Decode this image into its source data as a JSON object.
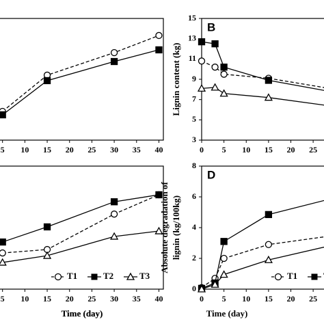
{
  "chart_data": [
    {
      "type": "line",
      "x_label": "Time (day)",
      "x": [
        5,
        15,
        30,
        40
      ],
      "xlim": [
        0,
        41
      ],
      "xticks": [
        5,
        10,
        15,
        20,
        25,
        30,
        35,
        40
      ],
      "ylim": [
        0,
        100
      ],
      "series": [
        {
          "name": "T1",
          "color": "#000000",
          "values": [
            23.6,
            53.4,
            71.9,
            86
          ]
        },
        {
          "name": "T2",
          "color": "#000000",
          "values": [
            20.8,
            48.9,
            64.6,
            74.2
          ]
        }
      ]
    },
    {
      "type": "line",
      "panel_label": "B",
      "y_label": "Lignin content (kg)",
      "x": [
        0,
        3,
        5,
        15,
        30
      ],
      "xlim": [
        0,
        40
      ],
      "xticks": [
        0,
        5,
        10,
        15,
        20,
        25
      ],
      "ylim": [
        3,
        15
      ],
      "yticks": [
        3,
        5,
        7,
        9,
        11,
        13,
        15
      ],
      "series": [
        {
          "name": "T1",
          "color": "#000000",
          "values": [
            10.8,
            10.2,
            9.5,
            9.1,
            8.0
          ]
        },
        {
          "name": "T2",
          "color": "#000000",
          "values": [
            12.7,
            12.5,
            10.2,
            8.9,
            7.7
          ]
        },
        {
          "name": "T3",
          "color": "#000000",
          "values": [
            8.1,
            8.2,
            7.6,
            7.2,
            6.3
          ]
        }
      ]
    },
    {
      "type": "line",
      "x_label": "Time (day)",
      "x": [
        5,
        15,
        30,
        40
      ],
      "xlim": [
        0,
        41
      ],
      "xticks": [
        5,
        10,
        15,
        20,
        25,
        30,
        35,
        40
      ],
      "ylim": [
        0,
        100
      ],
      "series": [
        {
          "name": "T1",
          "color": "#000000",
          "values": [
            29.4,
            32.2,
            61,
            76.7
          ]
        },
        {
          "name": "T2",
          "color": "#000000",
          "values": [
            38.3,
            50.6,
            71,
            76.7
          ]
        },
        {
          "name": "T3",
          "color": "#000000",
          "values": [
            21.7,
            27.2,
            42.8,
            47.2
          ]
        }
      ]
    },
    {
      "type": "line",
      "panel_label": "D",
      "x_label": "Time (day)",
      "y_label": [
        "Absolute degradation of",
        "lignin (kg/100kg)"
      ],
      "x": [
        0,
        3,
        5,
        15,
        30
      ],
      "xlim": [
        0,
        40
      ],
      "xticks": [
        0,
        5,
        10,
        15,
        20,
        25
      ],
      "ylim": [
        0,
        8
      ],
      "yticks": [
        0,
        2,
        4,
        6,
        8
      ],
      "series": [
        {
          "name": "T1",
          "color": "#000000",
          "values": [
            0.1,
            0.7,
            2.0,
            2.9,
            3.5
          ]
        },
        {
          "name": "T2",
          "color": "#000000",
          "values": [
            0.05,
            0.4,
            3.1,
            4.85,
            5.95
          ]
        },
        {
          "name": "T3",
          "color": "#000000",
          "values": [
            0,
            0.3,
            0.95,
            1.9,
            2.9
          ]
        }
      ]
    }
  ]
}
